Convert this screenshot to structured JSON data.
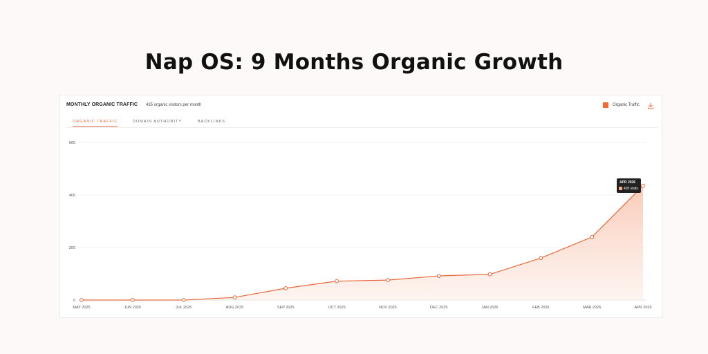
{
  "page": {
    "title": "Nap OS: 9 Months Organic Growth"
  },
  "card": {
    "title": "MONTHLY ORGANIC TRAFFIC",
    "subtitle": "435 organic visitors per month",
    "download_icon": "download-icon"
  },
  "tabs": [
    {
      "label": "ORGANIC TRAFFIC",
      "active": true
    },
    {
      "label": "DOMAIN AUTHORITY",
      "active": false
    },
    {
      "label": "BACKLINKS",
      "active": false
    }
  ],
  "tooltip": {
    "title": "APR 2026",
    "value": "435 visits"
  },
  "colors": {
    "accent": "#e8673a",
    "legend": "#f26b34",
    "fill_top": "#f9c6b1",
    "fill_bottom": "#fdf0ea"
  },
  "chart_data": {
    "type": "area",
    "categories": [
      "MAY 2025",
      "JUN 2025",
      "JUL 2025",
      "AUG 2025",
      "SEP 2025",
      "OCT 2025",
      "NOV 2025",
      "DEC 2025",
      "JAN 2026",
      "FEB 2026",
      "MAR 2026",
      "APR 2026"
    ],
    "series": [
      {
        "name": "Organic Traffic",
        "values": [
          0,
          0,
          0,
          10,
          45,
          72,
          76,
          92,
          98,
          160,
          240,
          435
        ]
      }
    ],
    "ylim": [
      0,
      600
    ],
    "yticks": [
      0,
      200,
      400,
      600
    ],
    "grid": true,
    "legend": "top-right"
  }
}
